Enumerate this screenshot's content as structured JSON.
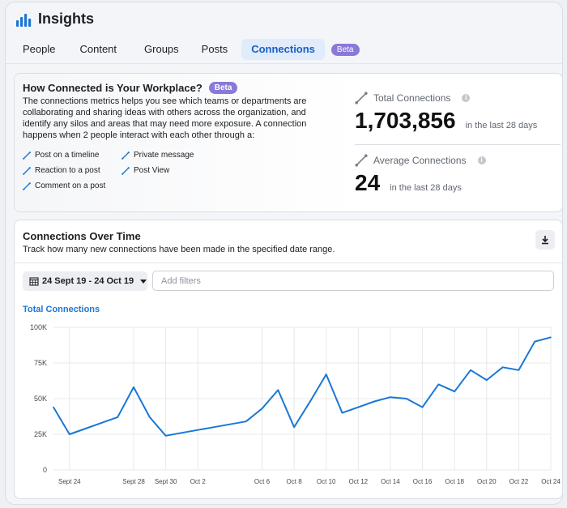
{
  "app": {
    "title": "Insights",
    "logo_icon": "bar-chart-icon"
  },
  "tabs": [
    {
      "label": "People",
      "active": false
    },
    {
      "label": "Content",
      "active": false
    },
    {
      "label": "Groups",
      "active": false
    },
    {
      "label": "Posts",
      "active": false
    },
    {
      "label": "Connections",
      "active": true
    }
  ],
  "tab_badge": "Beta",
  "intro": {
    "title": "How Connected is Your Workplace?",
    "badge": "Beta",
    "description": "The connections metrics helps you see which teams or departments are collaborating and sharing ideas with others across the organization, and identify any silos and areas that may need more exposure. A connection happens when 2 people interact with each other through a:",
    "methods": [
      "Post on a timeline",
      "Private message",
      "Reaction to a post",
      "Post View",
      "Comment on a post"
    ]
  },
  "stats": {
    "total": {
      "label": "Total Connections",
      "value": "1,703,856",
      "period": "in the last 28 days"
    },
    "average": {
      "label": "Average Connections",
      "value": "24",
      "period": "in the last 28 days"
    }
  },
  "over_time": {
    "title": "Connections Over Time",
    "subtitle": "Track how many new connections have been made in the specified date range.",
    "date_range": "24 Sept 19 - 24 Oct 19",
    "filter_placeholder": "Add filters",
    "series_title": "Total Connections"
  },
  "colors": {
    "accent": "#1a77d6",
    "beta": "#8a79d8",
    "active_tab_bg": "#e0ebfb"
  },
  "chart_data": {
    "type": "line",
    "x": [
      "Sept 23",
      "Sept 24",
      "Sept 25",
      "Sept 26",
      "Sept 27",
      "Sept 28",
      "Sept 29",
      "Sept 30",
      "Oct 1",
      "Oct 2",
      "Oct 3",
      "Oct 4",
      "Oct 5",
      "Oct 6",
      "Oct 7",
      "Oct 8",
      "Oct 9",
      "Oct 10",
      "Oct 11",
      "Oct 12",
      "Oct 13",
      "Oct 14",
      "Oct 15",
      "Oct 16",
      "Oct 17",
      "Oct 18",
      "Oct 19",
      "Oct 20",
      "Oct 21",
      "Oct 22",
      "Oct 23",
      "Oct 24"
    ],
    "series": [
      {
        "values": [
          44000,
          25000,
          29000,
          33000,
          37000,
          58000,
          37000,
          24000,
          26000,
          28000,
          30000,
          32000,
          34000,
          43000,
          56000,
          30000,
          48000,
          67000,
          40000,
          44000,
          48000,
          51000,
          50000,
          44000,
          60000,
          55000,
          70000,
          63000,
          72000,
          70000,
          90000,
          93000
        ]
      }
    ],
    "x_tick_labels": [
      "Sept 24",
      "Sept 28",
      "Sept 30",
      "Oct 2",
      "Oct 6",
      "Oct 8",
      "Oct 10",
      "Oct 12",
      "Oct 14",
      "Oct 16",
      "Oct 18",
      "Oct 20",
      "Oct 22",
      "Oct 24"
    ],
    "y_tick_labels": [
      "100K",
      "75K",
      "50K",
      "25K",
      "0"
    ],
    "ylim": [
      0,
      100000
    ],
    "grid": true,
    "line_color": "#1a77d6"
  }
}
